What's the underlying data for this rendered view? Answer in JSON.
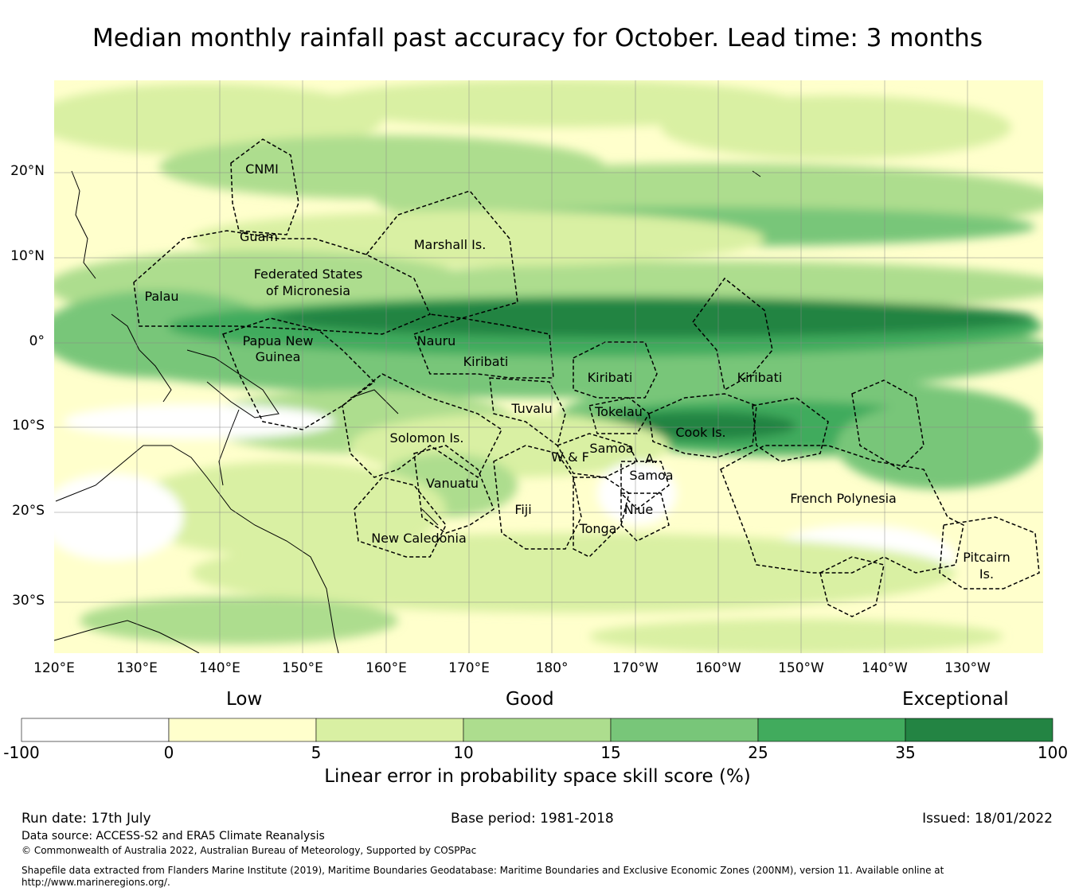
{
  "title": "Median monthly rainfall past accuracy for October. Lead time: 3 months",
  "map": {
    "latitude_labels": [
      "20°N",
      "10°N",
      "0°",
      "10°S",
      "20°S",
      "30°S"
    ],
    "longitude_labels": [
      "120°E",
      "130°E",
      "140°E",
      "150°E",
      "160°E",
      "170°E",
      "180°",
      "170°W",
      "160°W",
      "150°W",
      "140°W",
      "130°W"
    ],
    "regions": [
      "CNMI",
      "Guam",
      "Marshall Is.",
      "Federated States of Micronesia",
      "Palau",
      "Papua New Guinea",
      "Nauru",
      "Kiribati",
      "Kiribati",
      "Kiribati",
      "Solomon Is.",
      "Tuvalu",
      "Tokelau",
      "Cook Is.",
      "Samoa",
      "W & F",
      "A. Samoa",
      "Vanuatu",
      "Fiji",
      "Niue",
      "Tonga",
      "New Caledonia",
      "French Polynesia",
      "Pitcairn Is."
    ],
    "colors": {
      "ocean_low": "#ffffcc",
      "band_15_25": "#78c679",
      "band_25_35": "#41ab5d",
      "band_35_100": "#238443"
    }
  },
  "legend": {
    "categories": [
      "Low",
      "Good",
      "Exceptional"
    ],
    "bins": [
      {
        "label": "-100",
        "color": "#ffffff"
      },
      {
        "label": "0",
        "color": "#ffffcc"
      },
      {
        "label": "5",
        "color": "#d9f0a3"
      },
      {
        "label": "10",
        "color": "#addd8e"
      },
      {
        "label": "15",
        "color": "#78c679"
      },
      {
        "label": "25",
        "color": "#41ab5d"
      },
      {
        "label": "35",
        "color": "#238443"
      }
    ],
    "end_label": "100",
    "label": "Linear error in probability space skill score (%)"
  },
  "footer": {
    "run_date": "Run date: 17th July",
    "base_period": "Base period: 1981-2018",
    "issued": "Issued: 18/01/2022",
    "data_source": "Data source: ACCESS-S2 and ERA5 Climate Reanalysis",
    "copyright": "© Commonwealth of Australia 2022, Australian Bureau of Meteorology, Supported by COSPPac",
    "shapefile_line1": "Shapefile data extracted from Flanders Marine Institute (2019), Maritime Boundaries Geodatabase: Maritime Boundaries and Exclusive Economic Zones (200NM), version 11. Available online at",
    "shapefile_line2": "http://www.marineregions.org/."
  }
}
